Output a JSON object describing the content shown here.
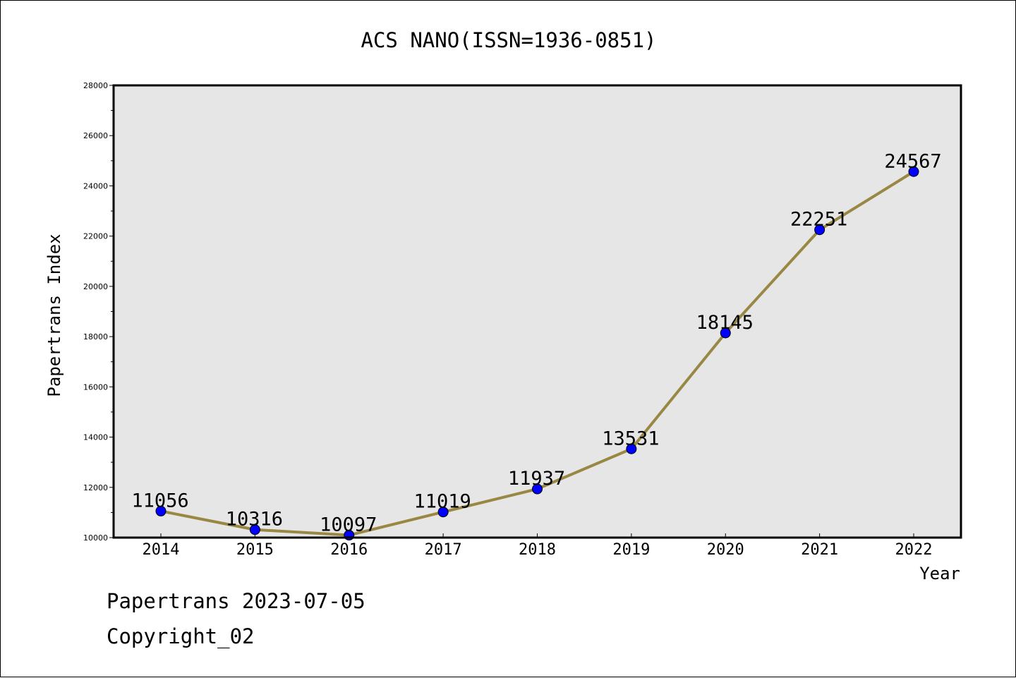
{
  "chart_data": {
    "type": "line",
    "title": "ACS NANO(ISSN=1936-0851)",
    "xlabel": "Year",
    "ylabel": "Papertrans Index",
    "categories": [
      "2014",
      "2015",
      "2016",
      "2017",
      "2018",
      "2019",
      "2020",
      "2021",
      "2022"
    ],
    "series": [
      {
        "values": [
          11056,
          10316,
          10097,
          11019,
          11937,
          13531,
          18145,
          22251,
          24567
        ],
        "data_labels": [
          "11056",
          "10316",
          "10097",
          "11019",
          "11937",
          "13531",
          "18145",
          "22251",
          "24567"
        ]
      }
    ],
    "ylim": [
      10000,
      28000
    ],
    "y_ticks": [
      "10000",
      "12000",
      "14000",
      "16000",
      "18000",
      "20000",
      "22000",
      "24000",
      "26000",
      "28000"
    ],
    "grid": false,
    "colors": {
      "line": "#998844",
      "marker": "#0000ff",
      "plot_background": "#e6e6e6",
      "axes": "#000000"
    }
  },
  "footer": {
    "line1": "Papertrans 2023-07-05",
    "line2": "Copyright_02"
  }
}
